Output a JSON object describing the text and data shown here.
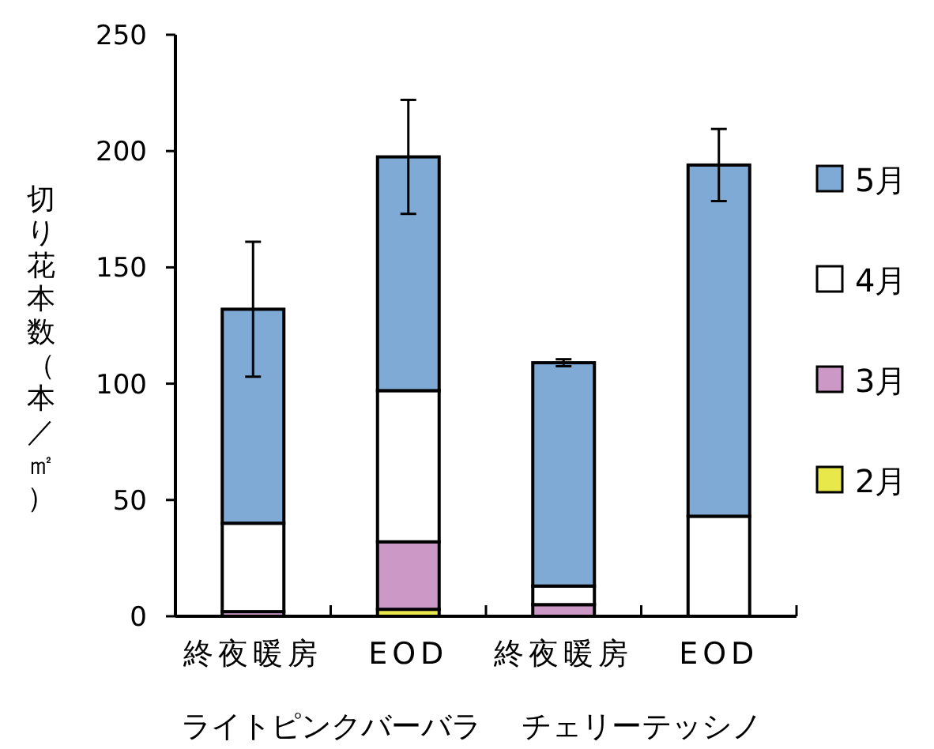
{
  "chart_data": {
    "type": "bar",
    "stacked": true,
    "ylabel": "切り花本数（本／㎡）",
    "categories": [
      "終夜暖房",
      "EOD",
      "終夜暖房",
      "EOD"
    ],
    "annotations": [
      {
        "text": "ライトピンクバーバラ"
      },
      {
        "text": "チェリーテッシノ"
      }
    ],
    "series": [
      {
        "name": "2月",
        "color": "#e8e84a",
        "values": [
          0,
          3,
          0,
          0
        ]
      },
      {
        "name": "3月",
        "color": "#cc99c6",
        "values": [
          2,
          29,
          5,
          0
        ]
      },
      {
        "name": "4月",
        "color": "#ffffff",
        "values": [
          38,
          65,
          8,
          43
        ]
      },
      {
        "name": "5月",
        "color": "#7faad5",
        "values": [
          92,
          100.5,
          96,
          151
        ],
        "errors": [
          29,
          24.5,
          1.5,
          15.5
        ]
      }
    ],
    "ylim": [
      0,
      250
    ],
    "yticks": [
      0,
      50,
      100,
      150,
      200,
      250
    ],
    "grid": false,
    "legend": "right"
  }
}
